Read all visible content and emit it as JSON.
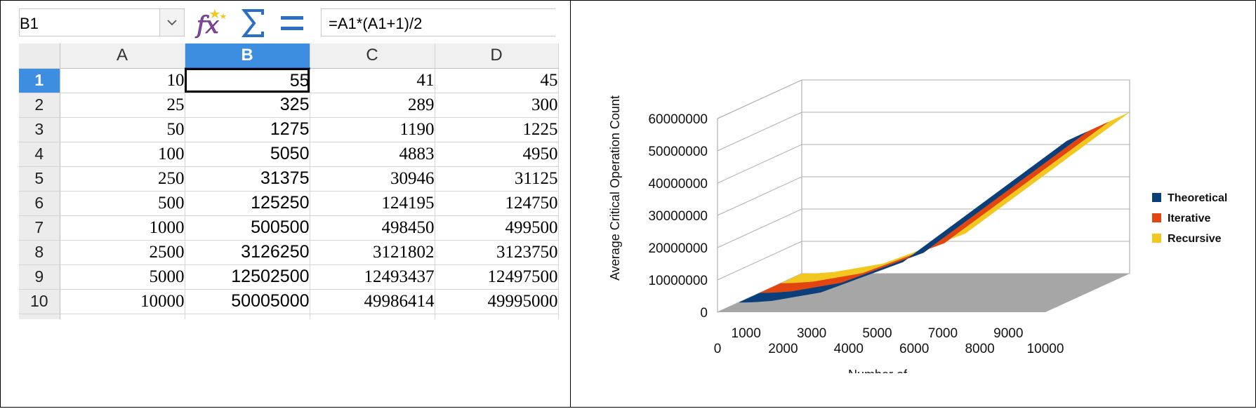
{
  "formula_bar": {
    "name_box": "B1",
    "formula": "=A1*(A1+1)/2",
    "icons": [
      "chevron-down-icon",
      "function-wizard-icon",
      "sum-icon",
      "equals-icon"
    ]
  },
  "sheet": {
    "columns": [
      "A",
      "B",
      "C",
      "D"
    ],
    "active_column": "B",
    "active_row": 1,
    "rows": [
      {
        "row": "1",
        "cells": [
          "10",
          "55",
          "41",
          "45"
        ]
      },
      {
        "row": "2",
        "cells": [
          "25",
          "325",
          "289",
          "300"
        ]
      },
      {
        "row": "3",
        "cells": [
          "50",
          "1275",
          "1190",
          "1225"
        ]
      },
      {
        "row": "4",
        "cells": [
          "100",
          "5050",
          "4883",
          "4950"
        ]
      },
      {
        "row": "5",
        "cells": [
          "250",
          "31375",
          "30946",
          "31125"
        ]
      },
      {
        "row": "6",
        "cells": [
          "500",
          "125250",
          "124195",
          "124750"
        ]
      },
      {
        "row": "7",
        "cells": [
          "1000",
          "500500",
          "498450",
          "499500"
        ]
      },
      {
        "row": "8",
        "cells": [
          "2500",
          "3126250",
          "3121802",
          "3123750"
        ]
      },
      {
        "row": "9",
        "cells": [
          "5000",
          "12502500",
          "12493437",
          "12497500"
        ]
      },
      {
        "row": "10",
        "cells": [
          "10000",
          "50005000",
          "49986414",
          "49995000"
        ]
      }
    ]
  },
  "chart_data": {
    "type": "area",
    "ylabel": "Average Critical Operation Count",
    "xlabel": "Number of",
    "x_ticks_back": [
      "1000",
      "3000",
      "5000",
      "7000",
      "9000"
    ],
    "x_ticks_front": [
      "0",
      "2000",
      "4000",
      "6000",
      "8000",
      "10000"
    ],
    "y_ticks": [
      "0",
      "10000000",
      "20000000",
      "30000000",
      "40000000",
      "50000000",
      "60000000"
    ],
    "ylim": [
      0,
      60000000
    ],
    "x": [
      10,
      25,
      50,
      100,
      250,
      500,
      1000,
      2500,
      5000,
      10000
    ],
    "series": [
      {
        "name": "Theoretical",
        "color": "#0b3f7a",
        "values": [
          55,
          325,
          1275,
          5050,
          31375,
          125250,
          500500,
          3126250,
          12502500,
          50005000
        ]
      },
      {
        "name": "Iterative",
        "color": "#e2450f",
        "values": [
          41,
          289,
          1190,
          4883,
          30946,
          124195,
          498450,
          3121802,
          12493437,
          49986414
        ]
      },
      {
        "name": "Recursive",
        "color": "#f2c820",
        "values": [
          45,
          300,
          1225,
          4950,
          31125,
          124750,
          499500,
          3123750,
          12497500,
          49995000
        ]
      }
    ],
    "legend_position": "right",
    "grid": true
  }
}
